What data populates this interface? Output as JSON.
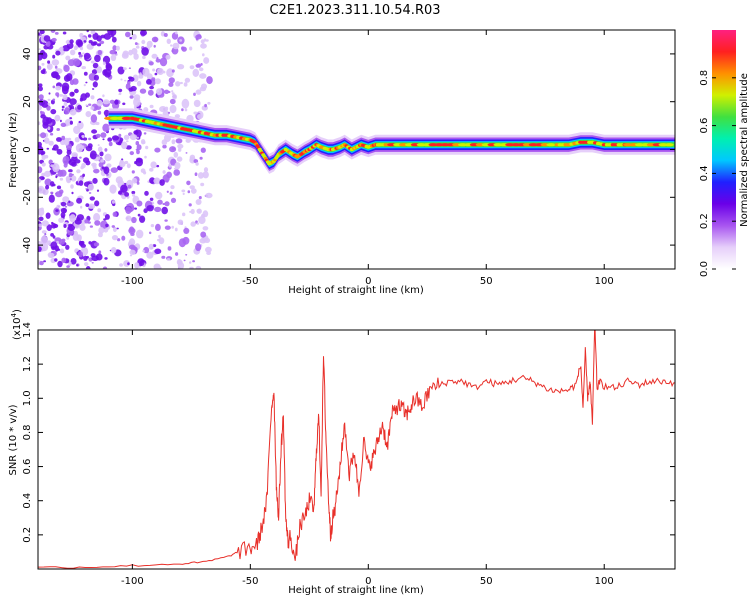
{
  "title": "C2E1.2023.311.10.54.R03",
  "chart_data": [
    {
      "type": "heatmap",
      "name": "spectrogram",
      "xlabel": "Height of straight line (km)",
      "ylabel": "Frequency (Hz)",
      "xlim": [
        -140,
        130
      ],
      "ylim": [
        -50,
        50
      ],
      "xticks": [
        -100,
        -50,
        0,
        50,
        100
      ],
      "yticks": [
        -40,
        -20,
        0,
        20,
        40
      ],
      "grid": false,
      "colorbar": {
        "label": "Normalized spectral amplitude",
        "range": [
          0,
          1
        ],
        "ticks": [
          0.0,
          0.2,
          0.4,
          0.6,
          0.8
        ],
        "colormap": [
          "#ffffff",
          "#e6cffa",
          "#a855f0",
          "#6a00e8",
          "#2020ff",
          "#00c8ff",
          "#00f0b0",
          "#40e040",
          "#d0f000",
          "#ff9000",
          "#ff2020",
          "#ff2080"
        ]
      },
      "ridge": {
        "x": [
          -110,
          -100,
          -95,
          -90,
          -85,
          -80,
          -75,
          -70,
          -65,
          -60,
          -55,
          -50,
          -48,
          -46,
          -44,
          -42,
          -40,
          -38,
          -35,
          -32,
          -30,
          -27,
          -25,
          -22,
          -20,
          -17,
          -15,
          -12,
          -10,
          -7,
          -5,
          -3,
          0,
          3,
          5,
          10,
          20,
          30,
          40,
          50,
          60,
          70,
          80,
          85,
          90,
          95,
          100,
          105,
          110,
          120,
          130
        ],
        "f": [
          13,
          13,
          12,
          11,
          10,
          9,
          8,
          7,
          6,
          6,
          5,
          4,
          3,
          0,
          -3,
          -6,
          -5,
          -2,
          0,
          -2,
          -3,
          -1,
          0,
          2,
          1,
          0,
          0,
          1,
          2,
          0,
          1,
          2,
          1,
          2,
          2,
          2,
          2,
          2,
          2,
          2,
          2,
          2,
          2,
          2,
          3,
          3,
          2,
          2,
          2,
          2,
          2
        ]
      },
      "noise_region": {
        "x_min": -140,
        "x_max": -75
      }
    },
    {
      "type": "line",
      "name": "snr",
      "xlabel": "Height of straight line (km)",
      "ylabel": "SNR (10 * v/v)",
      "y_multiplier": "(x10",
      "y_multiplier_exp": "4",
      "y_multiplier_close": ")",
      "xlim": [
        -140,
        130
      ],
      "ylim": [
        0,
        1.4
      ],
      "xticks": [
        -100,
        -50,
        0,
        50,
        100
      ],
      "yticks": [
        0.2,
        0.4,
        0.6,
        0.8,
        1.0,
        1.2,
        1.4
      ],
      "grid": false,
      "series": [
        {
          "color": "#e8302a",
          "x": [
            -140,
            -120,
            -100,
            -80,
            -70,
            -60,
            -55,
            -50,
            -47,
            -45,
            -43,
            -41,
            -40,
            -39,
            -38,
            -37,
            -36,
            -35,
            -34,
            -33,
            -31,
            -29,
            -27,
            -25,
            -23,
            -22,
            -21,
            -20,
            -19,
            -18,
            -17,
            -16,
            -15,
            -14,
            -12,
            -10,
            -8,
            -6,
            -4,
            -2,
            0,
            2,
            4,
            6,
            8,
            10,
            12,
            14,
            16,
            18,
            20,
            23,
            26,
            30,
            35,
            40,
            45,
            50,
            55,
            60,
            65,
            70,
            75,
            80,
            85,
            88,
            90,
            91,
            92,
            93,
            94,
            95,
            96,
            97,
            98,
            100,
            105,
            110,
            115,
            120,
            125,
            130
          ],
          "y": [
            0.01,
            0.01,
            0.02,
            0.03,
            0.04,
            0.07,
            0.1,
            0.12,
            0.15,
            0.25,
            0.4,
            0.95,
            1.05,
            0.5,
            0.3,
            0.7,
            0.9,
            0.3,
            0.15,
            0.2,
            0.05,
            0.25,
            0.3,
            0.4,
            0.35,
            0.7,
            0.9,
            0.45,
            1.25,
            0.8,
            0.45,
            0.2,
            0.3,
            0.35,
            0.6,
            0.85,
            0.55,
            0.7,
            0.45,
            0.75,
            0.6,
            0.65,
            0.75,
            0.85,
            0.72,
            0.9,
            0.95,
            0.95,
            0.9,
            0.95,
            1.0,
            0.95,
            1.05,
            1.08,
            1.1,
            1.1,
            1.06,
            1.1,
            1.08,
            1.1,
            1.12,
            1.1,
            1.06,
            1.04,
            1.05,
            1.08,
            1.2,
            0.95,
            1.28,
            1.0,
            1.1,
            0.85,
            1.45,
            1.05,
            1.1,
            1.07,
            1.06,
            1.1,
            1.08,
            1.1,
            1.1,
            1.09
          ]
        }
      ]
    }
  ]
}
